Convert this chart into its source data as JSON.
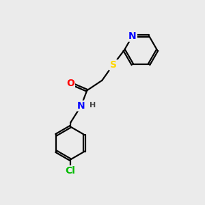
{
  "background_color": "#ebebeb",
  "atom_colors": {
    "N": "#0000FF",
    "O": "#FF0000",
    "S": "#FFD700",
    "Cl": "#00BB00",
    "C": "#000000",
    "H": "#444444"
  },
  "bond_color": "#000000",
  "bond_width": 1.6,
  "font_size_atoms": 10,
  "font_size_h": 8,
  "xlim": [
    0,
    10
  ],
  "ylim": [
    0,
    10
  ]
}
